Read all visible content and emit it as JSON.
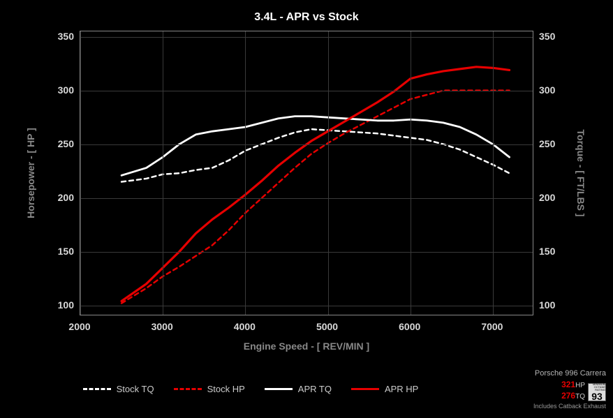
{
  "chart": {
    "title": "3.4L - APR vs Stock",
    "background_color": "#000000",
    "plot_border_color": "#888888",
    "grid_color": "#3a3a3a",
    "tick_label_color": "#d9d9d9",
    "axis_label_color": "#888888",
    "title_color": "#ffffff",
    "title_fontsize": 16,
    "tick_fontsize": 14,
    "axis_label_fontsize": 14,
    "x_axis": {
      "label": "Engine Speed - [ REV/MIN ]",
      "min": 2000,
      "max": 7500,
      "ticks": [
        2000,
        3000,
        4000,
        5000,
        6000,
        7000
      ]
    },
    "y_axis_left": {
      "label": "Horsepower - [ HP ]",
      "min": 90,
      "max": 355,
      "ticks": [
        100,
        150,
        200,
        250,
        300,
        350
      ]
    },
    "y_axis_right": {
      "label": "Torque - [ FT/LBS ]",
      "min": 90,
      "max": 355,
      "ticks": [
        100,
        150,
        200,
        250,
        300,
        350
      ]
    },
    "series": [
      {
        "name": "Stock TQ",
        "color": "#ffffff",
        "dash": "6,5",
        "width": 2.5,
        "x": [
          2500,
          2800,
          3000,
          3200,
          3400,
          3600,
          3800,
          4000,
          4200,
          4400,
          4600,
          4800,
          5000,
          5200,
          5400,
          5600,
          5800,
          6000,
          6200,
          6400,
          6600,
          6800,
          7000,
          7200
        ],
        "y": [
          215,
          218,
          222,
          223,
          226,
          228,
          235,
          244,
          250,
          256,
          261,
          264,
          263,
          262,
          261,
          260,
          258,
          256,
          254,
          250,
          245,
          238,
          231,
          223
        ]
      },
      {
        "name": "Stock HP",
        "color": "#e60000",
        "dash": "6,5",
        "width": 2.5,
        "x": [
          2500,
          2800,
          3000,
          3200,
          3400,
          3600,
          3800,
          4000,
          4200,
          4400,
          4600,
          4800,
          5000,
          5200,
          5400,
          5600,
          5800,
          6000,
          6200,
          6400,
          6600,
          6800,
          7000,
          7200
        ],
        "y": [
          102,
          116,
          127,
          136,
          146,
          156,
          170,
          186,
          200,
          214,
          228,
          241,
          251,
          260,
          268,
          276,
          284,
          292,
          296,
          300,
          300,
          300,
          300,
          300
        ]
      },
      {
        "name": "APR TQ",
        "color": "#ffffff",
        "dash": "",
        "width": 2.8,
        "x": [
          2500,
          2800,
          3000,
          3200,
          3400,
          3600,
          3800,
          4000,
          4200,
          4400,
          4600,
          4800,
          5000,
          5200,
          5400,
          5600,
          5800,
          6000,
          6200,
          6400,
          6600,
          6800,
          7000,
          7200
        ],
        "y": [
          221,
          228,
          238,
          250,
          259,
          262,
          264,
          266,
          270,
          274,
          276,
          276,
          275,
          274,
          273,
          272,
          272,
          273,
          272,
          270,
          266,
          259,
          250,
          238
        ]
      },
      {
        "name": "APR HP",
        "color": "#e60000",
        "dash": "",
        "width": 3.2,
        "x": [
          2500,
          2800,
          3000,
          3200,
          3400,
          3600,
          3800,
          4000,
          4200,
          4400,
          4600,
          4800,
          5000,
          5200,
          5400,
          5600,
          5800,
          6000,
          6200,
          6400,
          6600,
          6800,
          7000,
          7200
        ],
        "y": [
          104,
          120,
          135,
          150,
          167,
          180,
          191,
          203,
          216,
          230,
          242,
          253,
          262,
          271,
          280,
          289,
          299,
          311,
          315,
          318,
          320,
          322,
          321,
          319
        ]
      }
    ],
    "legend": [
      {
        "label": "Stock TQ",
        "color": "#ffffff",
        "dash": "dashed"
      },
      {
        "label": "Stock HP",
        "color": "#e60000",
        "dash": "dashed"
      },
      {
        "label": "APR TQ",
        "color": "#ffffff",
        "dash": "solid"
      },
      {
        "label": "APR HP",
        "color": "#e60000",
        "dash": "solid"
      }
    ]
  },
  "info": {
    "model": "Porsche 996 Carrera",
    "hp_value": "321",
    "hp_unit": "HP",
    "tq_value": "276",
    "tq_unit": "TQ",
    "octane_label": "MINIMUM OCTANE RATING",
    "octane_value": "93",
    "footnote": "Includes Catback Exhaust"
  }
}
